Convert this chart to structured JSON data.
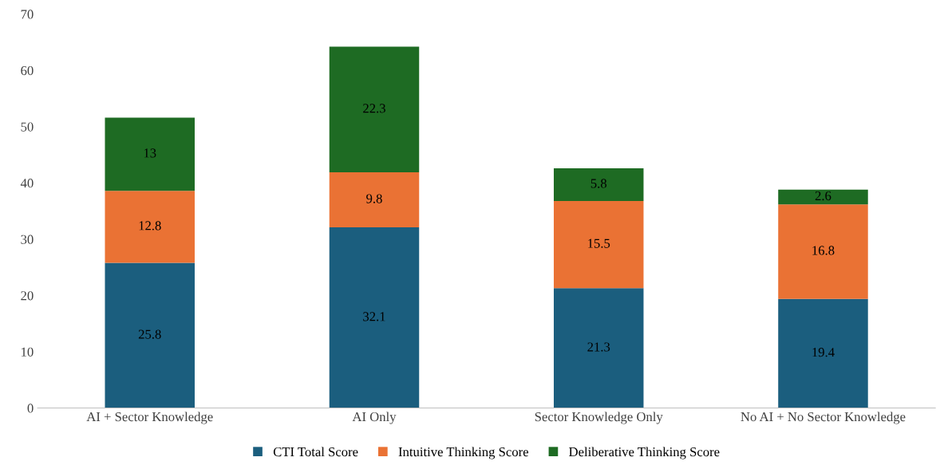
{
  "chart_data": {
    "type": "bar",
    "stacked": true,
    "categories": [
      "AI + Sector Knowledge",
      "AI Only",
      "Sector Knowledge Only",
      "No AI + No Sector Knowledge"
    ],
    "series": [
      {
        "name": "CTI Total Score",
        "color": "#1b5e7e",
        "values": [
          25.8,
          32.1,
          21.3,
          19.4
        ]
      },
      {
        "name": "Intuitive Thinking Score",
        "color": "#ea7234",
        "values": [
          12.8,
          9.8,
          15.5,
          16.8
        ]
      },
      {
        "name": "Deliberative Thinking Score",
        "color": "#1e6b23",
        "values": [
          13,
          22.3,
          5.8,
          2.6
        ]
      }
    ],
    "ylim": [
      0,
      70
    ],
    "yticks": [
      0,
      10,
      20,
      30,
      40,
      50,
      60,
      70
    ],
    "data_labels": true,
    "legend": "bottom",
    "grid": false
  }
}
